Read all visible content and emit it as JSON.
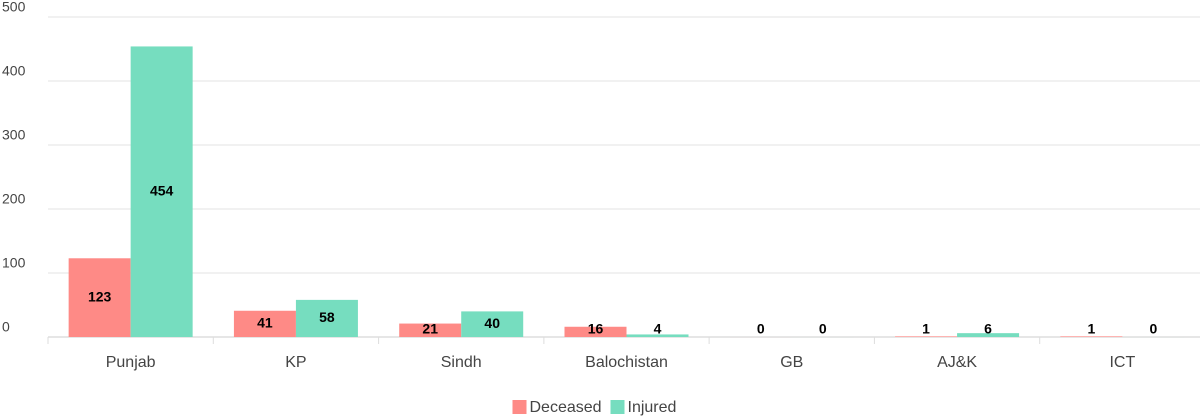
{
  "chart_data": {
    "type": "bar",
    "categories": [
      "Punjab",
      "KP",
      "Sindh",
      "Balochistan",
      "GB",
      "AJ&K",
      "ICT"
    ],
    "series": [
      {
        "name": "Deceased",
        "color": "#fe8a86",
        "values": [
          123,
          41,
          21,
          16,
          0,
          1,
          1
        ]
      },
      {
        "name": "Injured",
        "color": "#76ddbf",
        "values": [
          454,
          58,
          40,
          4,
          0,
          6,
          0
        ]
      }
    ],
    "ylim": [
      0,
      500
    ],
    "yticks": [
      0,
      100,
      200,
      300,
      400,
      500
    ],
    "grid": true,
    "legend": "bottom"
  }
}
